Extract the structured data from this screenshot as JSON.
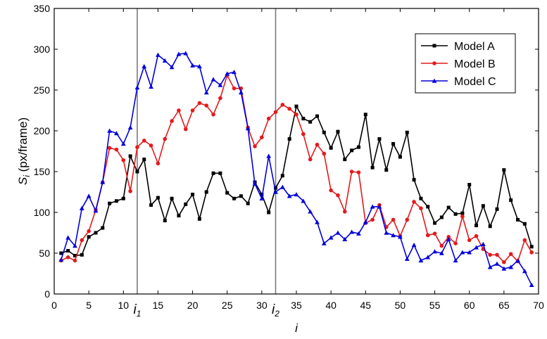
{
  "chart_data": {
    "type": "line",
    "xlabel": "i",
    "ylabel": {
      "main": "S",
      "sub": "i",
      "rest": " (px/frame)"
    },
    "xlim": [
      0,
      70
    ],
    "ylim": [
      0,
      350
    ],
    "x_ticks": [
      0,
      5,
      10,
      15,
      20,
      25,
      30,
      35,
      40,
      45,
      50,
      55,
      60,
      65,
      70
    ],
    "y_ticks": [
      0,
      50,
      100,
      150,
      200,
      250,
      300,
      350
    ],
    "x_tick_labels": [
      "0",
      "5",
      "10",
      "15",
      "20",
      "25",
      "30",
      "35",
      "40",
      "45",
      "50",
      "55",
      "60",
      "65",
      "70"
    ],
    "y_tick_labels": [
      "0",
      "50",
      "100",
      "150",
      "200",
      "250",
      "300",
      "350"
    ],
    "grid": false,
    "legend_position": "top-right",
    "vlines": [
      {
        "x": 12,
        "label": "i",
        "sub": "1"
      },
      {
        "x": 32,
        "label": "i",
        "sub": "2"
      }
    ],
    "series": [
      {
        "name": "Model A",
        "color": "#000000",
        "marker": "square",
        "x": [
          1,
          2,
          3,
          4,
          5,
          6,
          7,
          8,
          9,
          10,
          11,
          12,
          13,
          14,
          15,
          16,
          17,
          18,
          19,
          20,
          21,
          22,
          23,
          24,
          25,
          26,
          27,
          28,
          29,
          30,
          31,
          32,
          33,
          34,
          35,
          36,
          37,
          38,
          39,
          40,
          41,
          42,
          43,
          44,
          45,
          46,
          47,
          48,
          49,
          50,
          51,
          52,
          53,
          54,
          55,
          56,
          57,
          58,
          59,
          60,
          61,
          62,
          63,
          64,
          65,
          66,
          67,
          68,
          69
        ],
        "y": [
          50,
          53,
          47,
          48,
          70,
          75,
          81,
          111,
          114,
          117,
          169,
          150,
          165,
          109,
          118,
          90,
          117,
          96,
          110,
          122,
          92,
          125,
          148,
          148,
          124,
          117,
          120,
          111,
          137,
          122,
          100,
          130,
          145,
          190,
          230,
          215,
          211,
          218,
          198,
          179,
          199,
          165,
          176,
          180,
          220,
          155,
          190,
          152,
          184,
          168,
          198,
          140,
          117,
          107,
          87,
          94,
          106,
          98,
          99,
          134,
          84,
          108,
          83,
          104,
          152,
          115,
          91,
          86,
          58
        ]
      },
      {
        "name": "Model B",
        "color": "#e41a1c",
        "marker": "circle",
        "x": [
          1,
          2,
          3,
          4,
          5,
          6,
          7,
          8,
          9,
          10,
          11,
          12,
          13,
          14,
          15,
          16,
          17,
          18,
          19,
          20,
          21,
          22,
          23,
          24,
          25,
          26,
          27,
          28,
          29,
          30,
          31,
          32,
          33,
          34,
          35,
          36,
          37,
          38,
          39,
          40,
          41,
          42,
          43,
          44,
          45,
          46,
          47,
          48,
          49,
          50,
          51,
          52,
          53,
          54,
          55,
          56,
          57,
          58,
          59,
          60,
          61,
          62,
          63,
          64,
          65,
          66,
          67,
          68,
          69
        ],
        "y": [
          41,
          45,
          41,
          66,
          77,
          103,
          137,
          179,
          177,
          164,
          126,
          180,
          188,
          182,
          160,
          190,
          212,
          225,
          202,
          225,
          234,
          231,
          220,
          240,
          268,
          252,
          252,
          204,
          181,
          192,
          215,
          223,
          232,
          227,
          220,
          196,
          165,
          183,
          172,
          127,
          121,
          101,
          150,
          149,
          87,
          91,
          109,
          82,
          91,
          71,
          91,
          113,
          105,
          72,
          74,
          59,
          70,
          62,
          95,
          66,
          71,
          55,
          48,
          48,
          39,
          49,
          40,
          66,
          51
        ]
      },
      {
        "name": "Model C",
        "color": "#0000dd",
        "marker": "triangle",
        "x": [
          1,
          2,
          3,
          4,
          5,
          6,
          7,
          8,
          9,
          10,
          11,
          12,
          13,
          14,
          15,
          16,
          17,
          18,
          19,
          20,
          21,
          22,
          23,
          24,
          25,
          26,
          27,
          28,
          29,
          30,
          31,
          32,
          33,
          34,
          35,
          36,
          37,
          38,
          39,
          40,
          41,
          42,
          43,
          44,
          45,
          46,
          47,
          48,
          49,
          50,
          51,
          52,
          53,
          54,
          55,
          56,
          57,
          58,
          59,
          60,
          61,
          62,
          63,
          64,
          65,
          66,
          67,
          68,
          69
        ],
        "y": [
          42,
          69,
          59,
          105,
          120,
          102,
          137,
          200,
          197,
          184,
          204,
          253,
          279,
          254,
          293,
          286,
          278,
          294,
          295,
          280,
          279,
          247,
          263,
          256,
          270,
          272,
          247,
          203,
          135,
          117,
          169,
          125,
          131,
          120,
          122,
          114,
          101,
          88,
          62,
          69,
          75,
          67,
          76,
          74,
          88,
          107,
          107,
          75,
          72,
          70,
          43,
          60,
          41,
          45,
          52,
          50,
          67,
          41,
          51,
          51,
          57,
          61,
          33,
          37,
          31,
          33,
          41,
          28,
          11
        ]
      }
    ]
  }
}
